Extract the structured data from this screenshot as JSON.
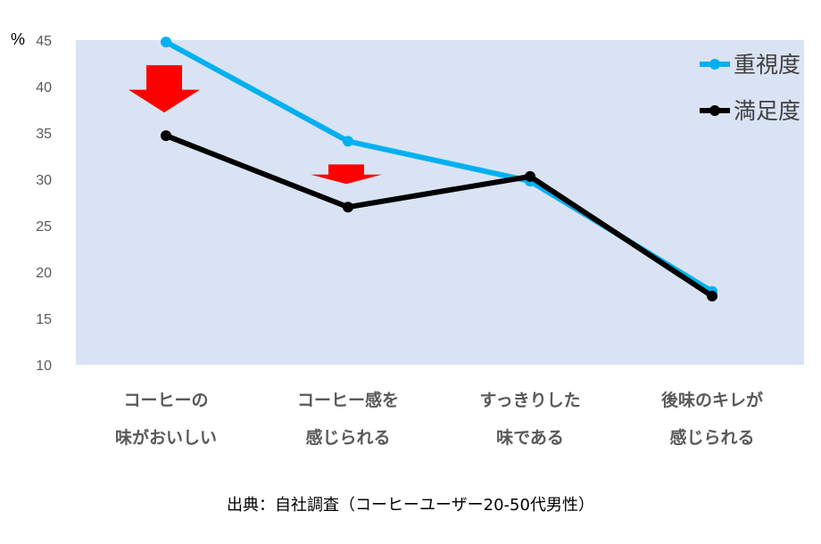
{
  "chart_data": {
    "type": "line",
    "ylabel": "%",
    "ylim": [
      10,
      45
    ],
    "yticks": [
      45,
      40,
      35,
      30,
      25,
      20,
      15,
      10
    ],
    "categories": [
      [
        "コーヒーの",
        "味がおいしい"
      ],
      [
        "コーヒー感を",
        "感じられる"
      ],
      [
        "すっきりした",
        "味である"
      ],
      [
        "後味のキレが",
        "感じられる"
      ]
    ],
    "series": [
      {
        "name": "重視度",
        "values": [
          44.8,
          34.1,
          29.8,
          17.9
        ],
        "color": "#00B0F0"
      },
      {
        "name": "満足度",
        "values": [
          34.7,
          27.0,
          30.3,
          17.4
        ],
        "color": "#000000"
      }
    ],
    "arrows_color": "#FF0000",
    "plot_background": "#DAE3F3",
    "grid": false,
    "legend_position": "top-right"
  },
  "source": "出典：自社調査（コーヒーユーザー20-50代男性）"
}
